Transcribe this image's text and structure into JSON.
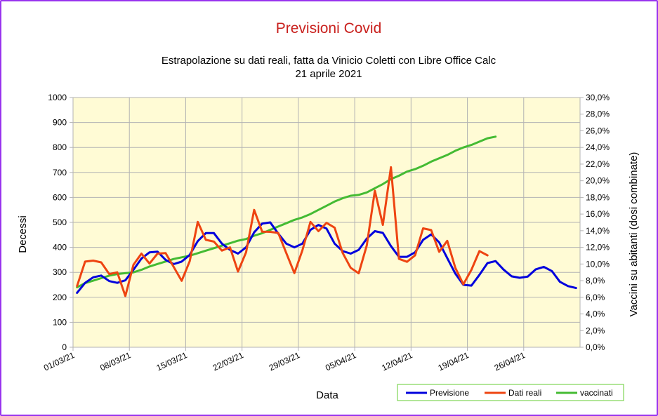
{
  "chart_data": {
    "type": "line",
    "title": "Previsioni Covid",
    "subtitle_lines": [
      "Estrapolazione su dati reali, fatta da Vinicio Coletti con Libre Office Calc",
      "21 aprile 2021"
    ],
    "xlabel": "Data",
    "ylabel": "Decessi",
    "y2label": "Vaccini su abitanti (dosi combinate)",
    "ylim": [
      0,
      1000
    ],
    "y2lim": [
      0,
      0.3
    ],
    "y_ticks": [
      "0",
      "100",
      "200",
      "300",
      "400",
      "500",
      "600",
      "700",
      "800",
      "900",
      "1000"
    ],
    "y2_ticks": [
      "0,0%",
      "2,0%",
      "4,0%",
      "6,0%",
      "8,0%",
      "10,0%",
      "12,0%",
      "14,0%",
      "16,0%",
      "18,0%",
      "20,0%",
      "22,0%",
      "24,0%",
      "26,0%",
      "28,0%",
      "30,0%"
    ],
    "x_ticks": [
      "01/03/21",
      "08/03/21",
      "15/03/21",
      "22/03/21",
      "29/03/21",
      "05/04/21",
      "12/04/21",
      "19/04/21",
      "26/04/21"
    ],
    "x_days": [
      "01/03",
      "02/03",
      "03/03",
      "04/03",
      "05/03",
      "06/03",
      "07/03",
      "08/03",
      "09/03",
      "10/03",
      "11/03",
      "12/03",
      "13/03",
      "14/03",
      "15/03",
      "16/03",
      "17/03",
      "18/03",
      "19/03",
      "20/03",
      "21/03",
      "22/03",
      "23/03",
      "24/03",
      "25/03",
      "26/03",
      "27/03",
      "28/03",
      "29/03",
      "30/03",
      "31/03",
      "01/04",
      "02/04",
      "03/04",
      "04/04",
      "05/04",
      "06/04",
      "07/04",
      "08/04",
      "09/04",
      "10/04",
      "11/04",
      "12/04",
      "13/04",
      "14/04",
      "15/04",
      "16/04",
      "17/04",
      "18/04",
      "19/04",
      "20/04",
      "21/04",
      "22/04",
      "23/04",
      "24/04",
      "25/04",
      "26/04",
      "27/04",
      "28/04",
      "29/04",
      "30/04",
      "01/05",
      "02/05"
    ],
    "grid": true,
    "plot_background": "#fffbd5",
    "legend_position": "bottom-right",
    "series": [
      {
        "name": "Previsione",
        "axis": "left",
        "color": "#0000dd",
        "values": [
          218,
          258,
          280,
          287,
          265,
          258,
          268,
          310,
          355,
          380,
          383,
          350,
          333,
          343,
          370,
          425,
          457,
          457,
          415,
          390,
          375,
          400,
          460,
          495,
          500,
          455,
          415,
          400,
          415,
          470,
          490,
          475,
          415,
          385,
          375,
          390,
          435,
          465,
          458,
          405,
          362,
          362,
          380,
          430,
          452,
          420,
          357,
          295,
          250,
          247,
          290,
          337,
          345,
          311,
          284,
          278,
          283,
          312,
          322,
          305,
          262,
          245,
          237
        ]
      },
      {
        "name": "Dati reali",
        "axis": "left",
        "color": "#ee4411",
        "values": [
          245,
          343,
          347,
          340,
          293,
          300,
          205,
          330,
          375,
          335,
          375,
          377,
          322,
          266,
          345,
          502,
          430,
          423,
          387,
          400,
          303,
          380,
          550,
          463,
          462,
          458,
          377,
          297,
          388,
          502,
          465,
          498,
          479,
          378,
          318,
          296,
          408,
          627,
          490,
          721,
          354,
          342,
          368,
          476,
          469,
          382,
          426,
          318,
          252,
          310,
          385,
          368
        ]
      },
      {
        "name": "vaccinati",
        "axis": "right",
        "color": "#44bb33",
        "values": [
          0.072,
          0.077,
          0.08,
          0.083,
          0.086,
          0.088,
          0.089,
          0.09,
          0.093,
          0.097,
          0.1,
          0.103,
          0.106,
          0.108,
          0.11,
          0.113,
          0.116,
          0.119,
          0.122,
          0.125,
          0.128,
          0.13,
          0.134,
          0.137,
          0.141,
          0.145,
          0.149,
          0.153,
          0.156,
          0.16,
          0.165,
          0.17,
          0.175,
          0.179,
          0.182,
          0.183,
          0.186,
          0.191,
          0.196,
          0.202,
          0.206,
          0.211,
          0.214,
          0.218,
          0.223,
          0.227,
          0.231,
          0.236,
          0.24,
          0.243,
          0.247,
          0.251,
          0.253
        ]
      }
    ]
  }
}
